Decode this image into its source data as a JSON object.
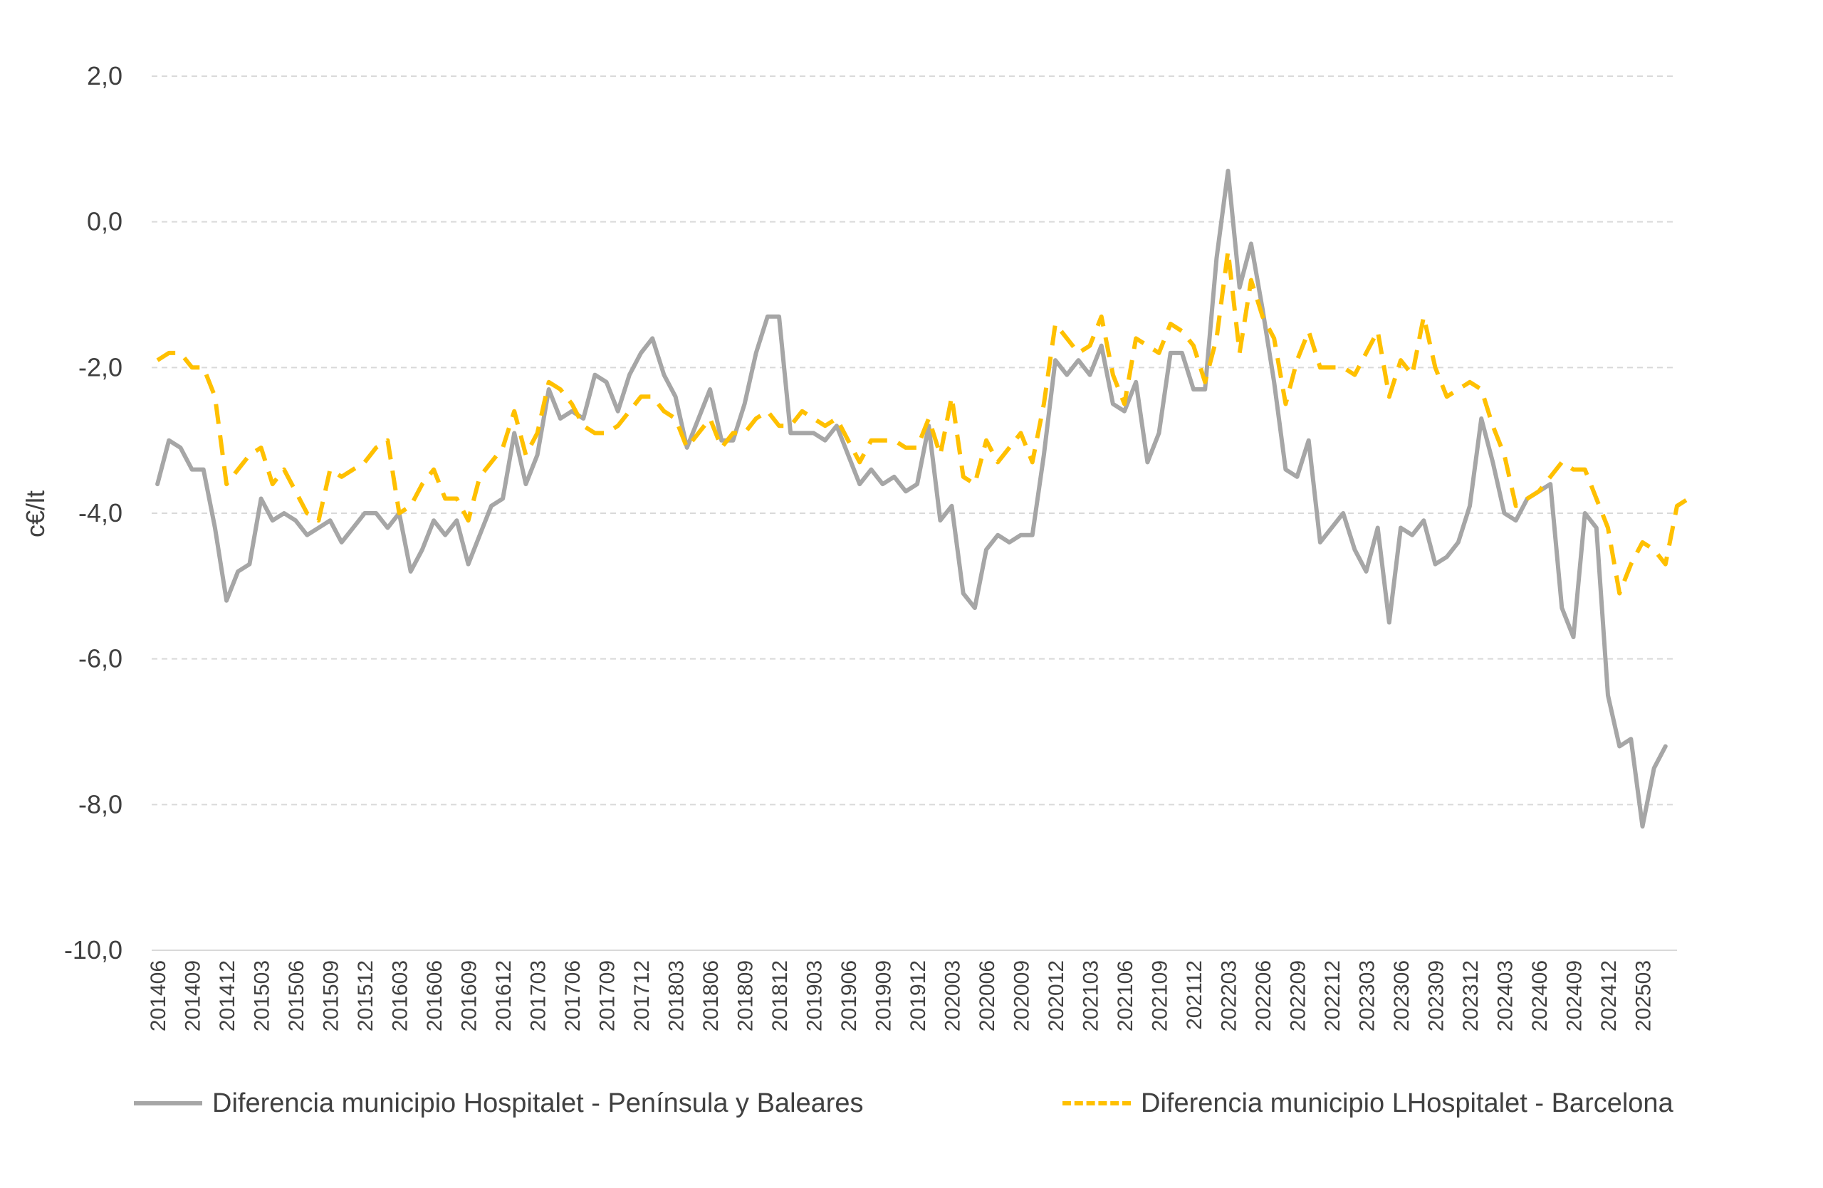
{
  "chart_data": {
    "type": "line",
    "ylabel": "c€/lt",
    "xlabel": "",
    "ylim": [
      -10,
      2
    ],
    "y_ticks": [
      "2,0",
      "0,0",
      "-2,0",
      "-4,0",
      "-6,0",
      "-8,0",
      "-10,0"
    ],
    "y_tick_values": [
      2,
      0,
      -2,
      -4,
      -6,
      -8,
      -10
    ],
    "grid": "horizontal dashed",
    "legend_position": "bottom",
    "x_tick_labels": [
      "201406",
      "201409",
      "201412",
      "201503",
      "201506",
      "201509",
      "201512",
      "201603",
      "201606",
      "201609",
      "201612",
      "201703",
      "201706",
      "201709",
      "201712",
      "201803",
      "201806",
      "201809",
      "201812",
      "201903",
      "201906",
      "201909",
      "201912",
      "202003",
      "202006",
      "202009",
      "202012",
      "202103",
      "202106",
      "202109",
      "202112",
      "202203",
      "202206",
      "202209",
      "202212",
      "202303",
      "202306",
      "202309",
      "202312",
      "202403",
      "202406",
      "202409",
      "202412",
      "202503"
    ],
    "x_start": "201406",
    "x_end": "202505",
    "series": [
      {
        "name": "Diferencia municipio Hospitalet - Península y Baleares",
        "color": "#A6A6A6",
        "style": "solid",
        "values": [
          -3.6,
          -3.0,
          -3.1,
          -3.4,
          -3.4,
          -4.2,
          -5.2,
          -4.8,
          -4.7,
          -3.8,
          -4.1,
          -4.0,
          -4.1,
          -4.3,
          -4.2,
          -4.1,
          -4.4,
          -4.2,
          -4.0,
          -4.0,
          -4.2,
          -4.0,
          -4.8,
          -4.5,
          -4.1,
          -4.3,
          -4.1,
          -4.7,
          -4.3,
          -3.9,
          -3.8,
          -2.9,
          -3.6,
          -3.2,
          -2.3,
          -2.7,
          -2.6,
          -2.7,
          -2.1,
          -2.2,
          -2.6,
          -2.1,
          -1.8,
          -1.6,
          -2.1,
          -2.4,
          -3.1,
          -2.7,
          -2.3,
          -3.0,
          -3.0,
          -2.5,
          -1.8,
          -1.3,
          -1.3,
          -2.9,
          -2.9,
          -2.9,
          -3.0,
          -2.8,
          -3.2,
          -3.6,
          -3.4,
          -3.6,
          -3.5,
          -3.7,
          -3.6,
          -2.8,
          -4.1,
          -3.9,
          -5.1,
          -5.3,
          -4.5,
          -4.3,
          -4.4,
          -4.3,
          -4.3,
          -3.2,
          -1.9,
          -2.1,
          -1.9,
          -2.1,
          -1.7,
          -2.5,
          -2.6,
          -2.2,
          -3.3,
          -2.9,
          -1.8,
          -1.8,
          -2.3,
          -2.3,
          -0.5,
          0.7,
          -0.9,
          -0.3,
          -1.2,
          -2.2,
          -3.4,
          -3.5,
          -3.0,
          -4.4,
          -4.2,
          -4.0,
          -4.5,
          -4.8,
          -4.2,
          -5.5,
          -4.2,
          -4.3,
          -4.1,
          -4.7,
          -4.6,
          -4.4,
          -3.9,
          -2.7,
          -3.3,
          -4.0,
          -4.1,
          -3.8,
          -3.7,
          -3.6,
          -5.3,
          -5.7,
          -4.0,
          -4.2,
          -6.5,
          -7.2,
          -7.1,
          -8.3,
          -7.5,
          -7.2
        ]
      },
      {
        "name": "Diferencia municipio LHospitalet - Barcelona",
        "color": "#FFC000",
        "style": "dashed",
        "values": [
          -1.9,
          -1.8,
          -1.8,
          -2.0,
          -2.0,
          -2.4,
          -3.6,
          -3.4,
          -3.2,
          -3.1,
          -3.6,
          -3.4,
          -3.7,
          -4.0,
          -4.1,
          -3.4,
          -3.5,
          -3.4,
          -3.3,
          -3.1,
          -3.0,
          -4.0,
          -3.9,
          -3.6,
          -3.4,
          -3.8,
          -3.8,
          -4.1,
          -3.5,
          -3.3,
          -3.1,
          -2.6,
          -3.2,
          -2.9,
          -2.2,
          -2.3,
          -2.5,
          -2.8,
          -2.9,
          -2.9,
          -2.8,
          -2.6,
          -2.4,
          -2.4,
          -2.6,
          -2.7,
          -3.1,
          -2.9,
          -2.7,
          -3.1,
          -2.9,
          -2.9,
          -2.7,
          -2.6,
          -2.8,
          -2.8,
          -2.6,
          -2.7,
          -2.8,
          -2.7,
          -3.0,
          -3.3,
          -3.0,
          -3.0,
          -3.0,
          -3.1,
          -3.1,
          -2.7,
          -3.2,
          -2.4,
          -3.5,
          -3.6,
          -3.0,
          -3.3,
          -3.1,
          -2.9,
          -3.3,
          -2.5,
          -1.4,
          -1.6,
          -1.8,
          -1.7,
          -1.3,
          -2.1,
          -2.5,
          -1.6,
          -1.7,
          -1.8,
          -1.4,
          -1.5,
          -1.7,
          -2.2,
          -1.6,
          -0.4,
          -1.8,
          -0.8,
          -1.3,
          -1.6,
          -2.5,
          -1.9,
          -1.5,
          -2.0,
          -2.0,
          -2.0,
          -2.1,
          -1.8,
          -1.5,
          -2.4,
          -1.9,
          -2.1,
          -1.3,
          -2.0,
          -2.4,
          -2.3,
          -2.2,
          -2.3,
          -2.8,
          -3.2,
          -3.9,
          -3.8,
          -3.7,
          -3.5,
          -3.3,
          -3.4,
          -3.4,
          -3.8,
          -4.2,
          -5.1,
          -4.7,
          -4.4,
          -4.5,
          -4.7,
          -3.9,
          -3.8
        ]
      }
    ]
  }
}
